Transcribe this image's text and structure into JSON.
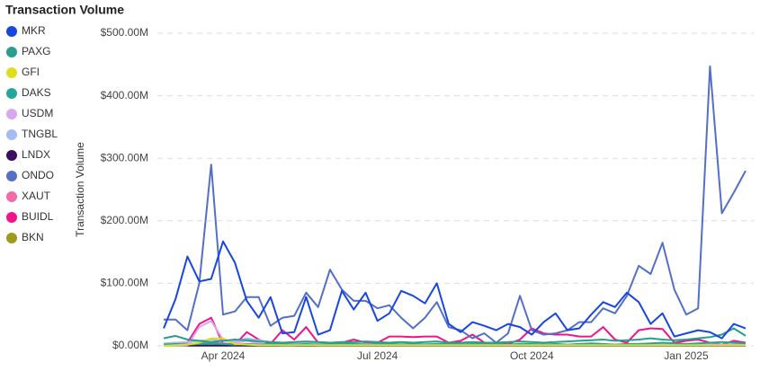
{
  "chart_data": {
    "type": "line",
    "title": "Transaction Volume",
    "y_label": "Transaction Volume",
    "categories": [
      null,
      null,
      null,
      null,
      null,
      "Apr 2024",
      null,
      null,
      null,
      null,
      null,
      null,
      null,
      null,
      null,
      null,
      null,
      null,
      "Jul 2024",
      null,
      null,
      null,
      null,
      null,
      null,
      null,
      null,
      null,
      null,
      null,
      null,
      "Oct 2024",
      null,
      null,
      null,
      null,
      null,
      null,
      null,
      null,
      null,
      null,
      null,
      null,
      "Jan 2025",
      null,
      null,
      null,
      null,
      null
    ],
    "ylim": [
      0,
      500
    ],
    "yticks": [
      {
        "value": 0,
        "label": "$0.00M"
      },
      {
        "value": 100,
        "label": "$100.00M"
      },
      {
        "value": 200,
        "label": "$200.00M"
      },
      {
        "value": 300,
        "label": "$300.00M"
      },
      {
        "value": 400,
        "label": "$400.00M"
      },
      {
        "value": 500,
        "label": "$500.00M"
      }
    ],
    "grid": true,
    "series": [
      {
        "name": "MKR",
        "color": "#1846e0",
        "values": [
          28,
          75,
          143,
          103,
          107,
          167,
          133,
          72,
          45,
          78,
          20,
          22,
          78,
          18,
          25,
          88,
          58,
          85,
          40,
          52,
          88,
          80,
          68,
          100,
          35,
          22,
          38,
          32,
          25,
          35,
          30,
          18,
          38,
          52,
          25,
          28,
          50,
          70,
          62,
          85,
          70,
          35,
          52,
          15,
          20,
          25,
          22,
          12,
          35,
          28
        ]
      },
      {
        "name": "PAXG",
        "color": "#2a9d8f",
        "values": [
          12,
          16,
          10,
          8,
          6,
          8,
          10,
          9,
          7,
          6,
          5,
          6,
          7,
          6,
          5,
          6,
          6,
          7,
          6,
          5,
          6,
          5,
          6,
          7,
          5,
          5,
          6,
          5,
          5,
          6,
          7,
          6,
          5,
          6,
          7,
          8,
          9,
          10,
          8,
          9,
          10,
          12,
          10,
          9,
          10,
          12,
          14,
          18,
          28,
          16
        ]
      },
      {
        "name": "GFI",
        "color": "#dede1a",
        "values": [
          0,
          1,
          2,
          5,
          12,
          12,
          3,
          2,
          1,
          1,
          1,
          1,
          1,
          1,
          1,
          1,
          1,
          1,
          1,
          1,
          1,
          1,
          1,
          1,
          1,
          1,
          1,
          1,
          1,
          1,
          1,
          1,
          1,
          1,
          1,
          1,
          1,
          1,
          1,
          1,
          1,
          1,
          1,
          1,
          1,
          1,
          1,
          1,
          1,
          1
        ]
      },
      {
        "name": "DAKS",
        "color": "#26a69a",
        "values": [
          2,
          3,
          2,
          3,
          4,
          3,
          2,
          3,
          2,
          3,
          3,
          2,
          3,
          2,
          3,
          4,
          3,
          2,
          3,
          3,
          2,
          3,
          2,
          3,
          3,
          2,
          3,
          4,
          3,
          2,
          3,
          3,
          2,
          3,
          2,
          3,
          4,
          3,
          2,
          3,
          3,
          4,
          5,
          4,
          3,
          4,
          5,
          6,
          5,
          4
        ]
      },
      {
        "name": "USDM",
        "color": "#d9a6f2",
        "values": [
          0,
          0,
          1,
          30,
          40,
          10,
          5,
          8,
          4,
          2,
          1,
          1,
          2,
          1,
          1,
          1,
          1,
          1,
          1,
          1,
          1,
          1,
          1,
          1,
          1,
          1,
          1,
          1,
          1,
          1,
          1,
          1,
          1,
          1,
          1,
          1,
          1,
          1,
          1,
          1,
          1,
          1,
          1,
          1,
          1,
          1,
          1,
          1,
          1,
          1
        ]
      },
      {
        "name": "TNGBL",
        "color": "#a3bcf2",
        "values": [
          4,
          5,
          6,
          8,
          10,
          8,
          7,
          12,
          9,
          6,
          5,
          5,
          6,
          5,
          4,
          4,
          4,
          3,
          3,
          3,
          3,
          3,
          3,
          3,
          3,
          3,
          2,
          2,
          2,
          2,
          2,
          2,
          2,
          2,
          2,
          2,
          2,
          2,
          2,
          2,
          2,
          2,
          2,
          2,
          2,
          2,
          2,
          2,
          2,
          2
        ]
      },
      {
        "name": "LNDX",
        "color": "#3d0c5c",
        "values": [
          0.5,
          0.5,
          0.5,
          0.5,
          0.5,
          0.5,
          0.5,
          0.5,
          0.5,
          0.5,
          0.5,
          0.5,
          0.5,
          0.5,
          0.5,
          0.5,
          0.5,
          0.5,
          0.5,
          0.5,
          0.5,
          0.5,
          0.5,
          0.5,
          0.5,
          0.5,
          0.5,
          0.5,
          0.5,
          0.5,
          0.5,
          0.5,
          0.5,
          0.5,
          0.5,
          0.5,
          0.5,
          0.5,
          0.5,
          0.5,
          0.5,
          0.5,
          0.5,
          0.5,
          0.5,
          0.5,
          0.5,
          0.5,
          0.5,
          0.5
        ]
      },
      {
        "name": "ONDO",
        "color": "#5470c6",
        "values": [
          42,
          42,
          25,
          100,
          290,
          50,
          55,
          78,
          78,
          32,
          45,
          48,
          85,
          62,
          122,
          90,
          72,
          72,
          60,
          65,
          45,
          28,
          45,
          70,
          30,
          25,
          12,
          20,
          5,
          20,
          80,
          25,
          18,
          20,
          25,
          38,
          38,
          60,
          52,
          80,
          128,
          115,
          165,
          90,
          50,
          60,
          447,
          212,
          245,
          280
        ]
      },
      {
        "name": "XAUT",
        "color": "#f06ba8",
        "values": [
          1,
          2,
          3,
          4,
          5,
          4,
          3,
          3,
          2,
          2,
          2,
          2,
          2,
          2,
          2,
          2,
          2,
          2,
          2,
          2,
          2,
          2,
          2,
          2,
          2,
          2,
          2,
          2,
          2,
          2,
          2,
          2,
          2,
          2,
          2,
          2,
          2,
          2,
          2,
          2,
          2,
          2,
          2,
          2,
          2,
          2,
          2,
          2,
          2,
          2
        ]
      },
      {
        "name": "BUIDL",
        "color": "#f0148c",
        "values": [
          2,
          3,
          5,
          35,
          45,
          3,
          2,
          22,
          10,
          3,
          25,
          10,
          30,
          5,
          5,
          5,
          10,
          5,
          5,
          15,
          15,
          14,
          15,
          15,
          5,
          8,
          18,
          5,
          5,
          3,
          10,
          28,
          20,
          18,
          18,
          15,
          15,
          30,
          10,
          5,
          25,
          28,
          27,
          5,
          8,
          10,
          5,
          2,
          8,
          5
        ]
      },
      {
        "name": "BKN",
        "color": "#9e9a1e",
        "values": [
          1,
          1,
          1,
          1,
          1,
          1,
          1,
          1,
          1,
          1,
          1,
          1,
          1,
          1,
          1,
          1,
          1,
          1,
          1,
          1,
          1,
          1,
          1,
          1,
          1,
          1,
          1,
          1,
          1,
          1,
          1,
          1,
          1,
          1,
          1,
          1,
          1,
          1,
          1,
          1,
          1,
          1,
          1,
          1,
          1,
          1,
          1,
          1,
          1,
          1
        ]
      }
    ]
  }
}
